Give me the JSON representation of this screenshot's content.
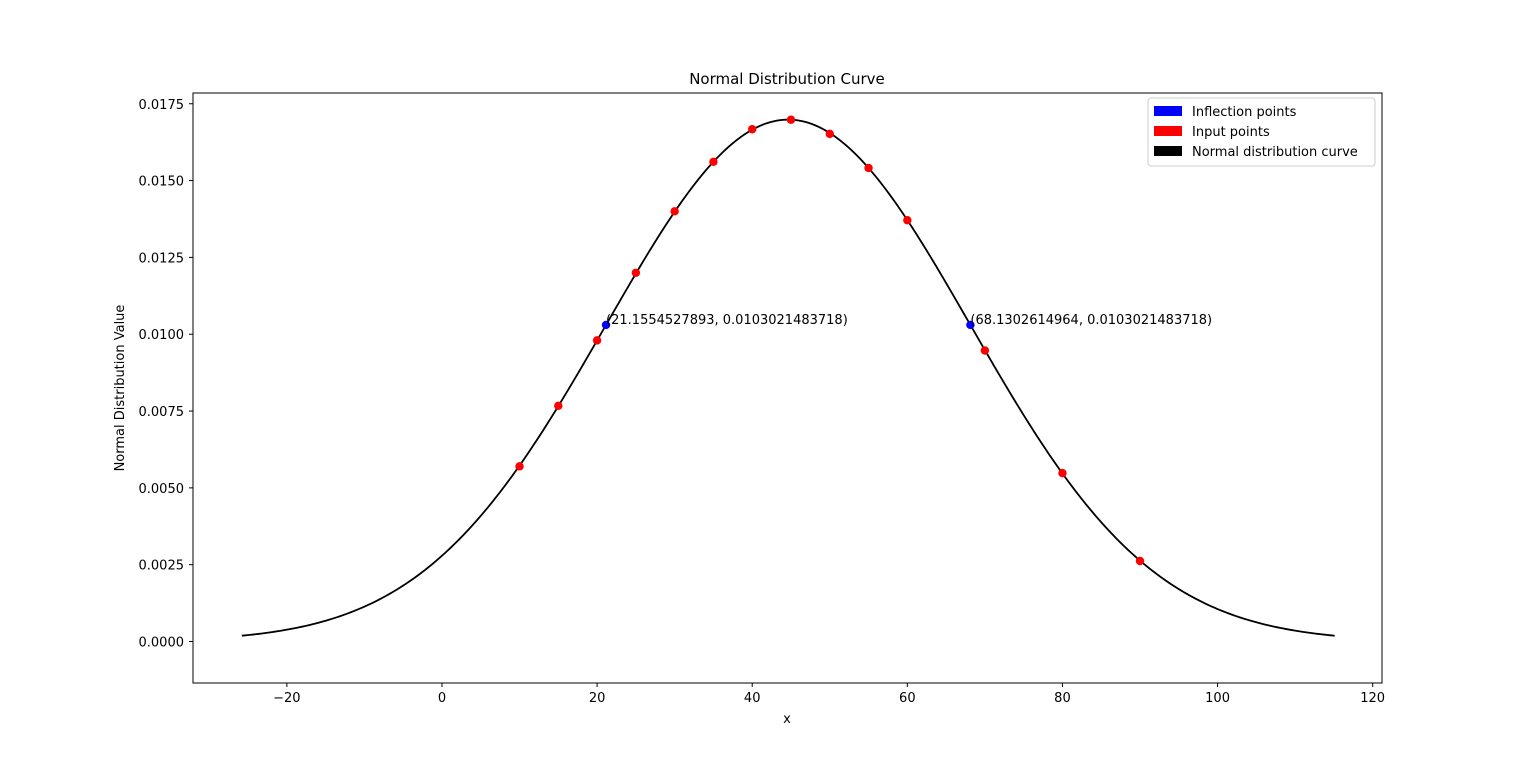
{
  "chart_data": {
    "type": "line",
    "title": "Normal Distribution Curve",
    "xlabel": "x",
    "ylabel": "Normal Distribution Value",
    "xlim": [
      -32.1,
      121.2
    ],
    "ylim": [
      -0.00135,
      0.01785
    ],
    "x_ticks": [
      -20,
      0,
      20,
      40,
      60,
      80,
      100,
      120
    ],
    "x_tick_labels": [
      "−20",
      "0",
      "20",
      "40",
      "60",
      "80",
      "100",
      "120"
    ],
    "y_ticks": [
      0.0,
      0.0025,
      0.005,
      0.0075,
      0.01,
      0.0125,
      0.015,
      0.0175
    ],
    "y_tick_labels": [
      "0.0000",
      "0.0025",
      "0.0050",
      "0.0075",
      "0.0100",
      "0.0125",
      "0.0150",
      "0.0175"
    ],
    "grid": false,
    "legend_position": "top-right",
    "curve": {
      "name": "Normal distribution curve",
      "color": "#000000",
      "mean": 44.64,
      "std": 23.49,
      "x_range": [
        -25.8,
        115.1
      ]
    },
    "series": [
      {
        "name": "Input points",
        "color": "#ff0000",
        "points": [
          {
            "x": 10,
            "y": 0.0057
          },
          {
            "x": 15,
            "y": 0.00767
          },
          {
            "x": 20,
            "y": 0.0098
          },
          {
            "x": 25,
            "y": 0.012
          },
          {
            "x": 30,
            "y": 0.014
          },
          {
            "x": 35,
            "y": 0.01561
          },
          {
            "x": 40,
            "y": 0.01667
          },
          {
            "x": 45,
            "y": 0.01698
          },
          {
            "x": 50,
            "y": 0.01652
          },
          {
            "x": 55,
            "y": 0.01541
          },
          {
            "x": 60,
            "y": 0.01371
          },
          {
            "x": 70,
            "y": 0.00947
          },
          {
            "x": 80,
            "y": 0.00548
          },
          {
            "x": 90,
            "y": 0.00262
          }
        ]
      },
      {
        "name": "Inflection points",
        "color": "#0000ff",
        "points": [
          {
            "x": 21.1554527893,
            "y": 0.0103021483718,
            "label": "(21.1554527893, 0.0103021483718)"
          },
          {
            "x": 68.1302614964,
            "y": 0.0103021483718,
            "label": "(68.1302614964, 0.0103021483718)"
          }
        ]
      }
    ],
    "legend": [
      {
        "label": "Inflection points",
        "color": "#0000ff"
      },
      {
        "label": "Input points",
        "color": "#ff0000"
      },
      {
        "label": "Normal distribution curve",
        "color": "#000000"
      }
    ]
  }
}
